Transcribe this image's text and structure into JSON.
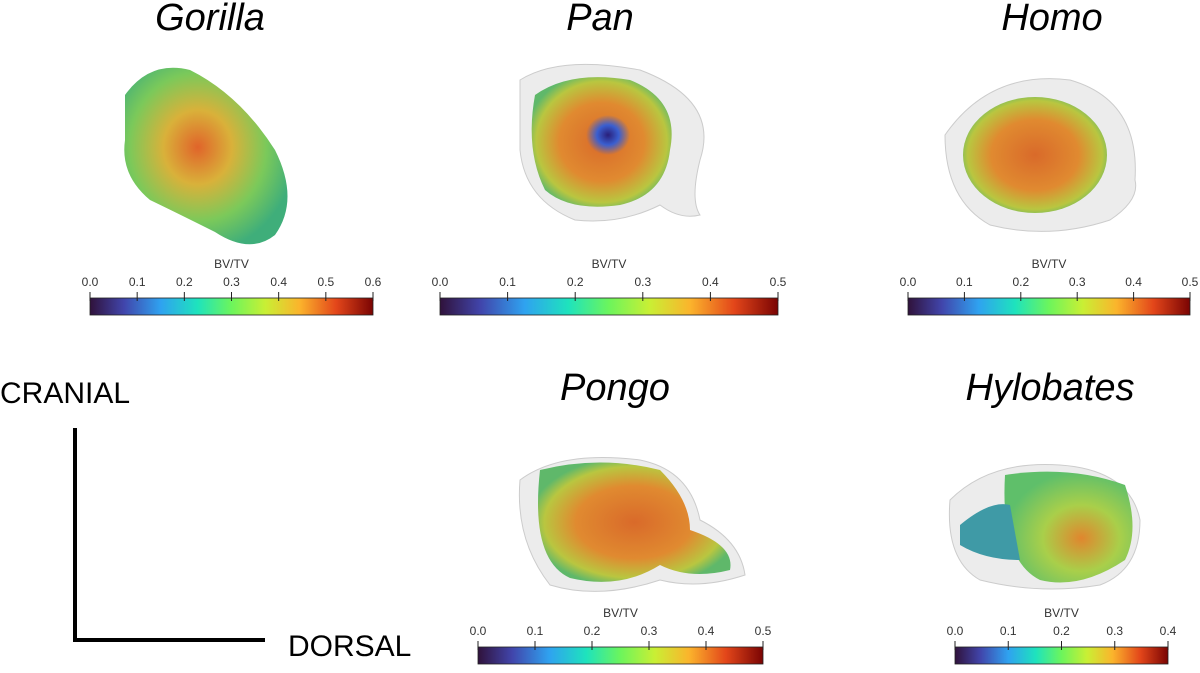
{
  "panels": [
    {
      "title": "Gorilla",
      "colorbar": {
        "label": "BV/TV",
        "lim": [
          0,
          0.6
        ],
        "ticks": [
          {
            "value": 0,
            "label": "0.0"
          },
          0.1,
          0.2,
          0.3,
          0.4,
          0.5,
          0.6
        ]
      }
    },
    {
      "title": "Pan",
      "colorbar": {
        "label": "BV/TV",
        "lim": [
          0,
          0.5
        ],
        "ticks": [
          {
            "value": 0,
            "label": "0.0"
          },
          0.1,
          0.2,
          0.3,
          0.4,
          0.5
        ]
      }
    },
    {
      "title": "Homo",
      "colorbar": {
        "label": "BV/TV",
        "lim": [
          0,
          0.5
        ],
        "ticks": [
          {
            "value": 0,
            "label": "0.0"
          },
          0.1,
          0.2,
          0.3,
          0.4,
          0.5
        ]
      }
    },
    {
      "title": "Pongo",
      "colorbar": {
        "label": "BV/TV",
        "lim": [
          0,
          0.5
        ],
        "ticks": [
          {
            "value": 0,
            "label": "0.0"
          },
          0.1,
          0.2,
          0.3,
          0.4,
          0.5
        ]
      }
    },
    {
      "title": "Hylobates",
      "colorbar": {
        "label": "BV/TV",
        "lim": [
          0,
          0.4
        ],
        "ticks": [
          {
            "value": 0,
            "label": "0.0"
          },
          0.1,
          0.2,
          0.3,
          0.4
        ]
      }
    }
  ],
  "axes": {
    "cranial": "CRANIAL",
    "dorsal": "DORSAL"
  }
}
